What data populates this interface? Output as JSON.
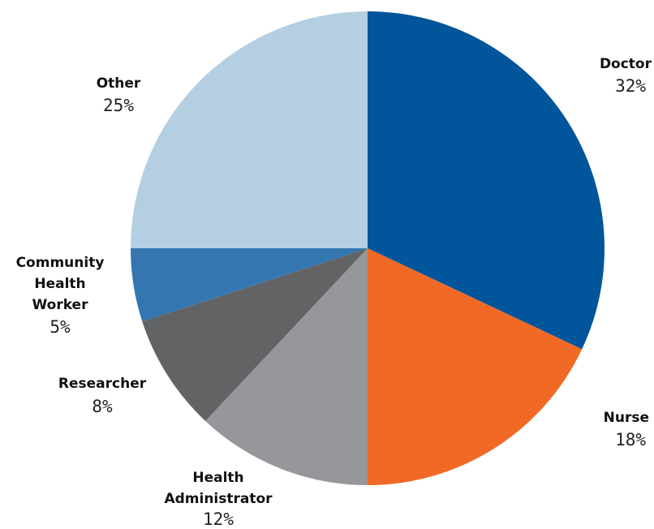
{
  "chart_data": {
    "type": "pie",
    "slices": [
      {
        "name": "Doctor",
        "value": 32,
        "label": "32%",
        "color": "#00559b"
      },
      {
        "name": "Nurse",
        "value": 18,
        "label": "18%",
        "color": "#f06a25"
      },
      {
        "name": "Health Administrator",
        "value": 12,
        "label": "12%",
        "color": "#95979a"
      },
      {
        "name": "Researcher",
        "value": 8,
        "label": "8%",
        "color": "#626365"
      },
      {
        "name": "Community Health Worker",
        "value": 5,
        "label": "5%",
        "color": "#3476b0"
      },
      {
        "name": "Other",
        "value": 25,
        "label": "25%",
        "color": "#b5cfe2"
      }
    ],
    "start_angle": "12 o'clock",
    "direction": "clockwise"
  }
}
